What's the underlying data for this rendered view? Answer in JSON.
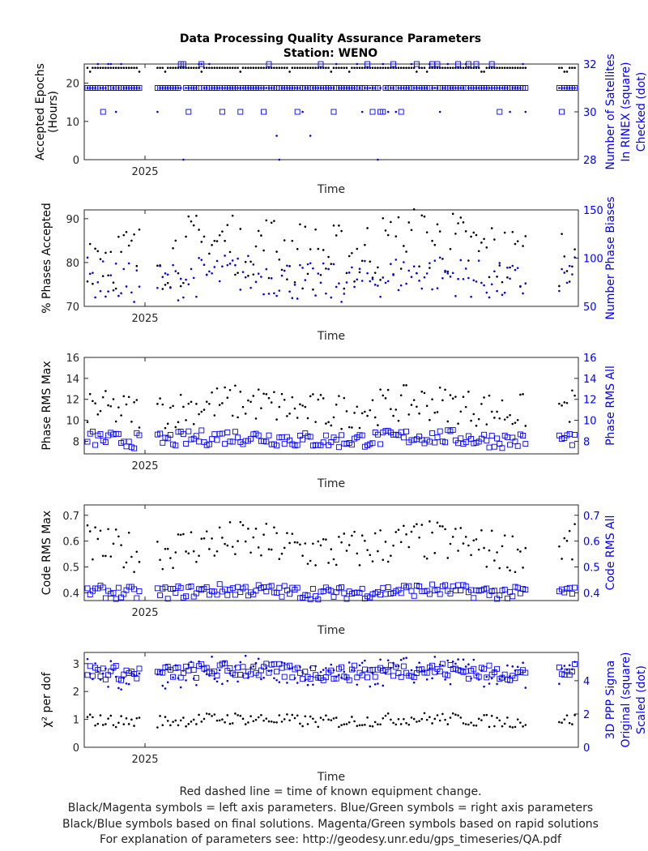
{
  "title": "Data Processing Quality Assurance Parameters",
  "subtitle": "Station: WENO",
  "colors": {
    "left": "#000000",
    "right": "#0000ff",
    "axis": "#262626"
  },
  "footer": [
    "Red dashed line = time of known equipment change.",
    "Black/Magenta symbols = left axis parameters. Blue/Green symbols = right axis parameters",
    "Black/Blue symbols based on final solutions.  Magenta/Green symbols based on rapid solutions",
    "For explanation of parameters see: http://geodesy.unr.edu/gps_timeseries/QA.pdf"
  ],
  "chart_data": [
    {
      "type": "scatter",
      "title": "Data Processing Quality Assurance Parameters",
      "subtitle": "Station: WENO",
      "xlabel": "Time",
      "xtick_labels": [
        "2025"
      ],
      "ylabel_left": [
        "Accepted Epochs",
        "(Hours)"
      ],
      "ylabel_right": [
        "Number of Satellites",
        "In RINEX (square)",
        "Checked (dot)"
      ],
      "ylim_left": [
        0,
        25
      ],
      "ylim_right": [
        28,
        32
      ],
      "yticks_left": [
        0,
        10,
        20
      ],
      "yticks_right": [
        28,
        30,
        32
      ],
      "series": [
        {
          "name": "Accepted Epochs",
          "axis": "left",
          "marker": "dot",
          "color": "#000000",
          "typical": 24
        },
        {
          "name": "In RINEX",
          "axis": "right",
          "marker": "square",
          "color": "#0000ff",
          "typical": 31
        },
        {
          "name": "Checked",
          "axis": "right",
          "marker": "dot",
          "color": "#0000ff",
          "typical": 31
        }
      ]
    },
    {
      "type": "scatter",
      "xlabel": "Time",
      "xtick_labels": [
        "2025"
      ],
      "ylabel_left": [
        "% Phases Accepted"
      ],
      "ylabel_right": [
        "Number Phase Biases"
      ],
      "ylim_left": [
        70,
        92
      ],
      "ylim_right": [
        50,
        150
      ],
      "yticks_left": [
        70,
        80,
        90
      ],
      "yticks_right": [
        50,
        100,
        150
      ],
      "series": [
        {
          "name": "% Phases Accepted",
          "axis": "left",
          "marker": "dot",
          "color": "#000000",
          "range": [
            75,
            91
          ]
        },
        {
          "name": "Number Phase Biases",
          "axis": "right",
          "marker": "dot",
          "color": "#0000ff",
          "range": [
            58,
            100
          ]
        }
      ]
    },
    {
      "type": "scatter",
      "xlabel": "Time",
      "xtick_labels": [
        "2025"
      ],
      "ylabel_left": [
        "Phase RMS Max"
      ],
      "ylabel_right": [
        "Phase RMS All"
      ],
      "ylim_left": [
        6.8,
        16
      ],
      "ylim_right": [
        6.8,
        16
      ],
      "yticks_left": [
        8,
        10,
        12,
        14,
        16
      ],
      "yticks_right": [
        8,
        10,
        12,
        14,
        16
      ],
      "series": [
        {
          "name": "Phase RMS Max",
          "axis": "left",
          "marker": "dot",
          "color": "#000000",
          "range": [
            9.5,
            13
          ]
        },
        {
          "name": "Phase RMS All",
          "axis": "right",
          "marker": "square",
          "color": "#0000ff",
          "range": [
            7.5,
            9
          ]
        }
      ]
    },
    {
      "type": "scatter",
      "xlabel": "Time",
      "xtick_labels": [
        "2025"
      ],
      "ylabel_left": [
        "Code RMS Max"
      ],
      "ylabel_right": [
        "Code RMS All"
      ],
      "ylim_left": [
        0.37,
        0.74
      ],
      "ylim_right": [
        0.37,
        0.74
      ],
      "yticks_left": [
        0.4,
        0.5,
        0.6,
        0.7
      ],
      "yticks_right": [
        0.4,
        0.5,
        0.6,
        0.7
      ],
      "series": [
        {
          "name": "Code RMS Max",
          "axis": "left",
          "marker": "dot",
          "color": "#000000",
          "range": [
            0.5,
            0.66
          ]
        },
        {
          "name": "Code RMS All",
          "axis": "right",
          "marker": "square",
          "color": "#0000ff",
          "range": [
            0.38,
            0.43
          ]
        }
      ]
    },
    {
      "type": "scatter",
      "xlabel": "Time",
      "xtick_labels": [
        "2025"
      ],
      "ylabel_left": [
        "χ² per dof"
      ],
      "ylabel_right": [
        "3D PPP Sigma",
        "Original (square)",
        "Scaled (dot)"
      ],
      "ylim_left": [
        0,
        3.4
      ],
      "ylim_right": [
        0,
        5.7
      ],
      "yticks_left": [
        0,
        1,
        2,
        3
      ],
      "yticks_right": [
        0,
        2,
        4
      ],
      "series": [
        {
          "name": "χ² per dof",
          "axis": "left",
          "marker": "dot",
          "color": "#000000",
          "range": [
            0.75,
            1.2
          ]
        },
        {
          "name": "Original",
          "axis": "right",
          "marker": "square",
          "color": "#0000ff",
          "range": [
            4.1,
            5.0
          ]
        },
        {
          "name": "Scaled",
          "axis": "right",
          "marker": "dot",
          "color": "#0000ff",
          "range": [
            3.6,
            5.3
          ]
        }
      ]
    }
  ]
}
